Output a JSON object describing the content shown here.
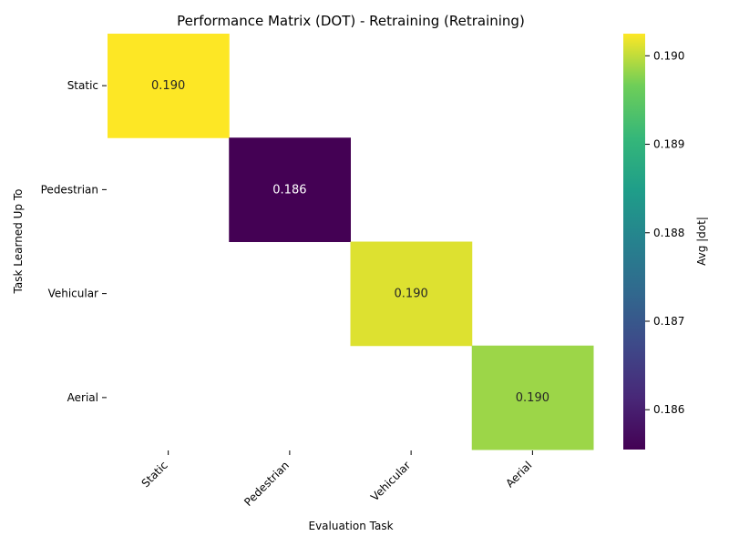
{
  "chart_data": {
    "type": "heatmap",
    "title": "Performance Matrix (DOT) - Retraining (Retraining)",
    "xlabel": "Evaluation Task",
    "ylabel": "Task Learned Up To",
    "x_categories": [
      "Static",
      "Pedestrian",
      "Vehicular",
      "Aerial"
    ],
    "y_categories": [
      "Static",
      "Pedestrian",
      "Vehicular",
      "Aerial"
    ],
    "cells": [
      {
        "row": 0,
        "col": 0,
        "value": 0.19025,
        "label": "0.190"
      },
      {
        "row": 1,
        "col": 1,
        "value": 0.18555,
        "label": "0.186"
      },
      {
        "row": 2,
        "col": 2,
        "value": 0.19012,
        "label": "0.190"
      },
      {
        "row": 3,
        "col": 3,
        "value": 0.18985,
        "label": "0.190"
      }
    ],
    "empty_cells_note": null,
    "colorbar": {
      "label": "Avg |dot|",
      "colormap": "viridis",
      "vmin": 0.18555,
      "vmax": 0.19025,
      "ticks": [
        "0.186",
        "0.187",
        "0.188",
        "0.189",
        "0.190"
      ],
      "tick_values": [
        0.186,
        0.187,
        0.188,
        0.189,
        0.19
      ]
    },
    "grid": false
  }
}
